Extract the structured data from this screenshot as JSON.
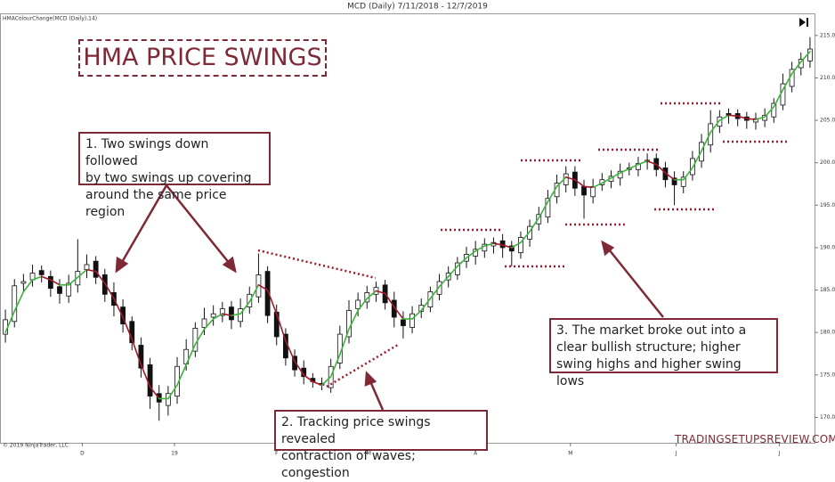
{
  "chart_data": {
    "type": "candlestick",
    "title": "MCD (Daily)  7/11/2018 - 12/7/2019",
    "categories": [
      null,
      null,
      null,
      null,
      null,
      null,
      null,
      null,
      null,
      null,
      null,
      null,
      null,
      null,
      null,
      null,
      null,
      null,
      null,
      null,
      null,
      null,
      null,
      null,
      null,
      null,
      null,
      null,
      null,
      null,
      null,
      null,
      null,
      null,
      null,
      null,
      null,
      null,
      null,
      null,
      null,
      null,
      null,
      null,
      null,
      null,
      null,
      null,
      null,
      null,
      null,
      null,
      null,
      null,
      null,
      null,
      null,
      null,
      null,
      null,
      null,
      null,
      null,
      null,
      null,
      null,
      null,
      null,
      null,
      null,
      null,
      null,
      null,
      null,
      null,
      null,
      null,
      null,
      null,
      null,
      null,
      null,
      null,
      null,
      null,
      null,
      null,
      null,
      null,
      null
    ],
    "open": [
      179.8,
      181.3,
      185.8,
      186.2,
      187.3,
      186.6,
      185.4,
      184.3,
      185.6,
      187.4,
      188.4,
      186.8,
      184.7,
      183.0,
      181.3,
      178.5,
      176.2,
      172.8,
      171.4,
      172.5,
      176.3,
      177.8,
      180.6,
      181.8,
      182.0,
      183.0,
      181.3,
      183.0,
      184.2,
      187.2,
      182.4,
      179.8,
      177.2,
      175.8,
      174.6,
      174.0,
      173.5,
      176.4,
      179.5,
      182.8,
      183.6,
      184.5,
      185.6,
      183.8,
      181.5,
      180.6,
      182.5,
      183.0,
      184.5,
      186.2,
      186.8,
      188.4,
      189.0,
      189.6,
      190.2,
      190.8,
      190.2,
      189.4,
      191.0,
      192.8,
      193.6,
      196.0,
      197.4,
      198.9,
      197.2,
      196.0,
      197.4,
      197.8,
      198.2,
      199.2,
      199.2,
      200.1,
      200.5,
      199.4,
      198.2,
      197.2,
      198.6,
      200.2,
      202.1,
      204.3,
      205.8,
      205.8,
      205.4,
      204.8,
      205.0,
      205.4,
      206.8,
      209.0,
      211.2,
      212.0
    ],
    "high": [
      182.7,
      186.3,
      186.9,
      188.0,
      187.9,
      187.3,
      186.3,
      186.8,
      191.0,
      189.2,
      189.0,
      187.5,
      185.9,
      183.9,
      181.9,
      179.4,
      177.0,
      173.8,
      173.7,
      177.1,
      179.2,
      181.2,
      182.9,
      183.2,
      183.6,
      183.7,
      184.0,
      185.4,
      189.3,
      187.8,
      183.3,
      180.5,
      178.0,
      176.7,
      175.2,
      174.7,
      176.9,
      180.8,
      183.8,
      184.7,
      185.5,
      186.0,
      186.2,
      184.8,
      182.5,
      183.1,
      184.0,
      185.4,
      186.9,
      187.8,
      188.9,
      190.1,
      190.8,
      191.1,
      191.2,
      191.6,
      190.8,
      191.9,
      193.3,
      194.8,
      196.8,
      198.6,
      199.6,
      199.6,
      198.0,
      198.1,
      198.8,
      199.1,
      199.9,
      200.0,
      200.7,
      201.1,
      201.1,
      200.1,
      199.0,
      199.0,
      201.4,
      203.4,
      206.2,
      206.2,
      206.4,
      206.3,
      206.0,
      205.9,
      206.4,
      207.6,
      210.5,
      211.9,
      213.0,
      214.8
    ],
    "low": [
      178.8,
      180.6,
      184.8,
      185.4,
      185.9,
      184.2,
      183.4,
      183.5,
      184.7,
      186.4,
      185.7,
      183.6,
      181.9,
      180.0,
      177.9,
      174.7,
      171.0,
      169.6,
      170.2,
      171.6,
      175.5,
      177.1,
      179.7,
      180.8,
      181.2,
      180.4,
      180.6,
      182.2,
      183.5,
      181.1,
      178.5,
      176.1,
      174.8,
      173.9,
      173.5,
      173.2,
      172.9,
      175.7,
      178.7,
      181.9,
      182.8,
      183.6,
      182.7,
      180.6,
      179.3,
      179.9,
      181.7,
      182.4,
      183.8,
      185.3,
      186.2,
      187.6,
      188.0,
      188.8,
      189.3,
      188.8,
      187.8,
      188.7,
      190.1,
      192.0,
      192.9,
      195.2,
      196.5,
      196.1,
      193.4,
      195.2,
      196.7,
      197.0,
      197.3,
      198.5,
      198.4,
      199.2,
      198.4,
      197.1,
      195.0,
      196.4,
      197.9,
      199.4,
      201.2,
      203.5,
      204.6,
      204.3,
      204.0,
      203.9,
      204.2,
      204.7,
      206.2,
      208.3,
      210.3,
      211.2
    ],
    "close": [
      181.5,
      185.5,
      186.0,
      187.0,
      186.8,
      185.2,
      184.6,
      185.8,
      187.2,
      188.0,
      186.5,
      184.5,
      183.2,
      181.0,
      178.8,
      175.8,
      172.5,
      171.8,
      172.8,
      176.0,
      178.0,
      180.5,
      181.6,
      182.2,
      182.8,
      181.5,
      182.8,
      184.5,
      186.8,
      182.0,
      179.5,
      177.0,
      175.6,
      174.8,
      174.2,
      173.8,
      176.0,
      179.8,
      182.6,
      183.8,
      184.7,
      185.3,
      183.5,
      181.8,
      180.8,
      182.2,
      183.2,
      184.8,
      186.0,
      187.0,
      188.2,
      189.2,
      189.8,
      190.4,
      190.6,
      190.0,
      189.6,
      191.2,
      192.5,
      193.9,
      195.8,
      197.6,
      198.7,
      197.0,
      196.2,
      197.2,
      198.0,
      198.4,
      199.0,
      199.4,
      199.9,
      200.3,
      199.2,
      198.0,
      197.4,
      198.3,
      200.5,
      202.4,
      204.6,
      205.4,
      205.6,
      205.2,
      205.0,
      205.2,
      205.6,
      207.0,
      209.3,
      211.0,
      212.2,
      213.4
    ],
    "up_color": "#ffffff",
    "down_color": "#111111",
    "hma": {
      "name": "HMAColourChange(MCD (Daily),14)",
      "rising_color": "#3cb33c",
      "falling_color": "#a3182a",
      "values": [
        180.0,
        182.5,
        184.8,
        186.2,
        186.6,
        186.2,
        185.6,
        185.6,
        186.5,
        187.4,
        187.2,
        185.8,
        184.0,
        181.8,
        179.2,
        176.2,
        173.6,
        172.2,
        172.2,
        173.8,
        176.2,
        178.6,
        180.4,
        181.6,
        182.2,
        182.0,
        182.2,
        183.6,
        185.6,
        185.0,
        182.2,
        179.0,
        176.6,
        175.0,
        174.2,
        173.8,
        174.8,
        177.4,
        180.4,
        182.6,
        184.0,
        184.9,
        184.6,
        183.0,
        181.6,
        181.6,
        182.6,
        184.0,
        185.4,
        186.6,
        187.8,
        188.8,
        189.6,
        190.2,
        190.5,
        190.3,
        190.0,
        190.6,
        191.9,
        193.5,
        195.4,
        197.2,
        198.3,
        198.0,
        197.2,
        197.1,
        197.6,
        198.2,
        198.8,
        199.3,
        199.8,
        200.2,
        199.8,
        198.8,
        198.0,
        198.0,
        199.4,
        201.4,
        203.6,
        205.0,
        205.6,
        205.5,
        205.2,
        205.1,
        205.4,
        206.6,
        208.6,
        210.5,
        211.9,
        213.1
      ]
    },
    "xlim": [
      -0.5,
      89.5
    ],
    "xticks": [
      {
        "value": 8.5,
        "label": "D"
      },
      {
        "value": 18.7,
        "label": "19"
      },
      {
        "value": 30,
        "label": "F"
      },
      {
        "value": 40.2,
        "label": "M"
      },
      {
        "value": 52,
        "label": "A"
      },
      {
        "value": 62.5,
        "label": "M"
      },
      {
        "value": 74.2,
        "label": "J"
      },
      {
        "value": 85.6,
        "label": "J"
      }
    ],
    "ylim": [
      167,
      217.5
    ],
    "yticks": [
      {
        "value": 170,
        "label": "170.00"
      },
      {
        "value": 175,
        "label": "175.00"
      },
      {
        "value": 180,
        "label": "180.00"
      },
      {
        "value": 185,
        "label": "185.00"
      },
      {
        "value": 190,
        "label": "190.00"
      },
      {
        "value": 195,
        "label": "195.00"
      },
      {
        "value": 200,
        "label": "200.00"
      },
      {
        "value": 205,
        "label": "205.00"
      },
      {
        "value": 210,
        "label": "210.00"
      },
      {
        "value": 215,
        "label": "215.00"
      }
    ],
    "grid": false
  },
  "annotations": {
    "title": "HMA PRICE SWINGS",
    "notes": [
      [
        "1. Two swings down followed",
        "by two swings up covering",
        "around the same price region"
      ],
      [
        "2. Tracking price swings revealed",
        "contraction of waves; congestion"
      ],
      [
        "3. The market broke out into a",
        "clear bullish structure; higher",
        "swing highs and higher swing lows"
      ]
    ]
  },
  "footer": {
    "copyright": "© 2019 NinjaTrader, LLC",
    "watermark": "TRADINGSETUPSREVIEW.COM"
  }
}
